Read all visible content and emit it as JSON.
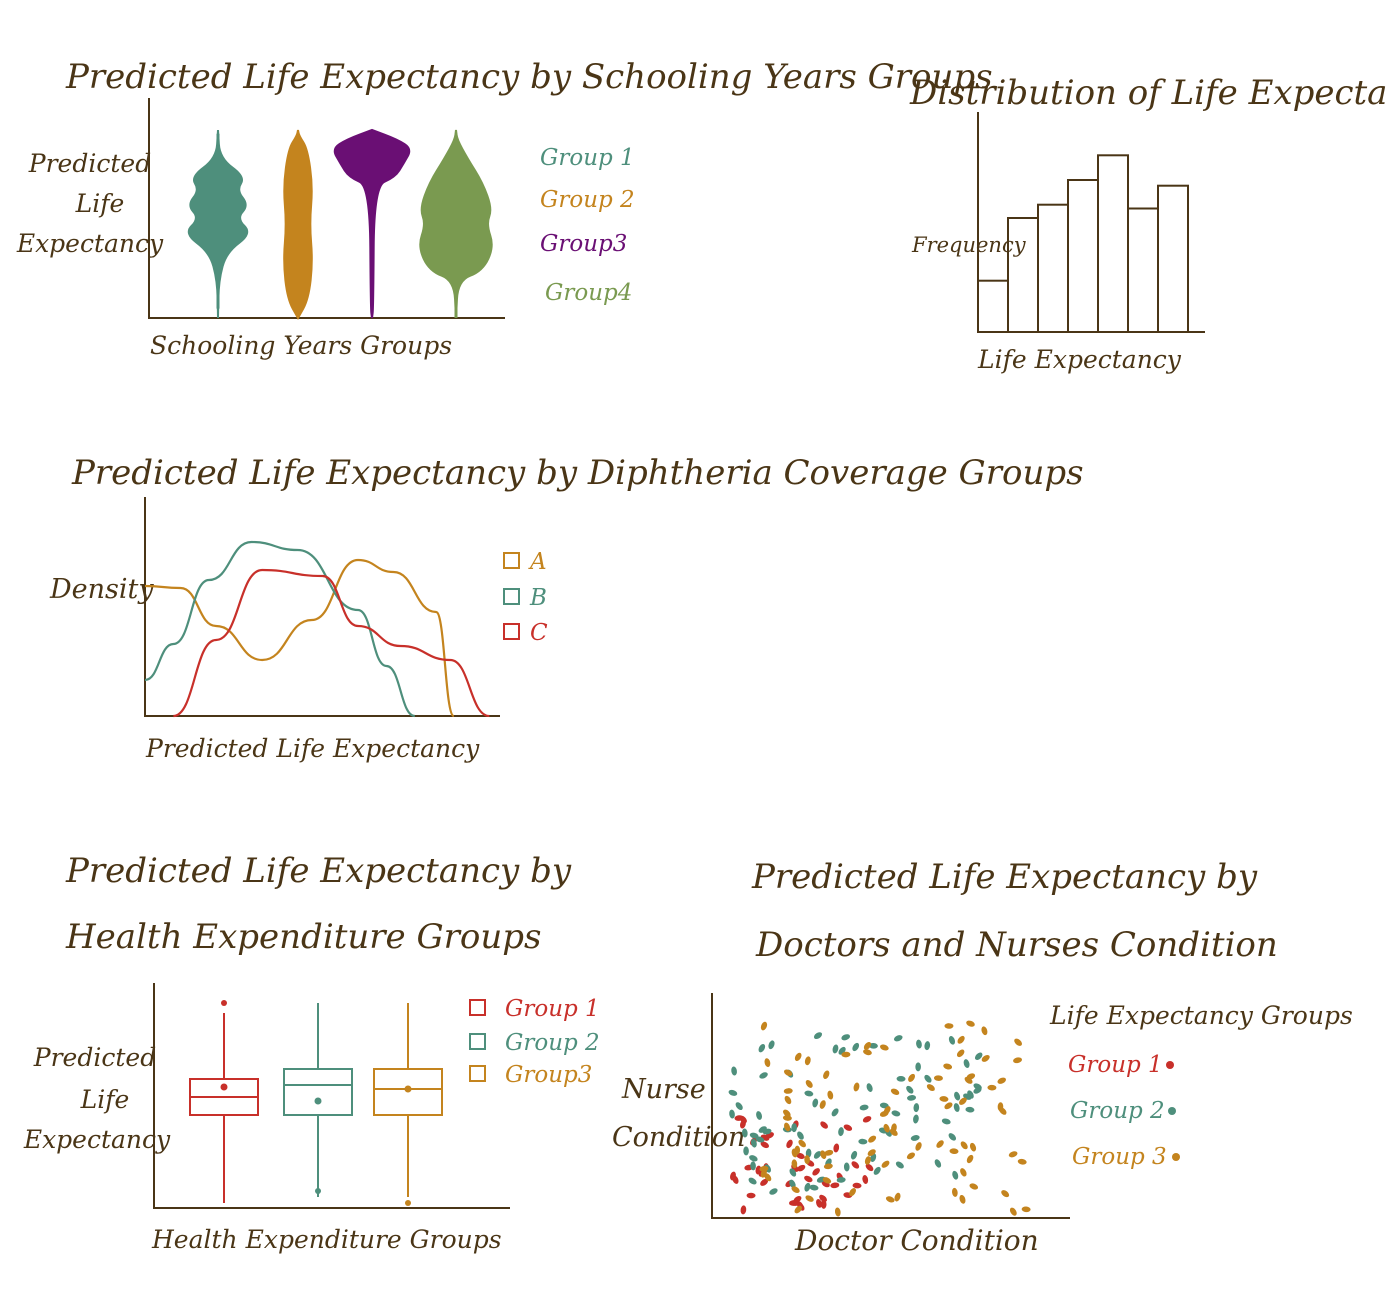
{
  "colors": {
    "ink": "#4a3516",
    "teal": "#4e8f7c",
    "orange": "#c4841e",
    "purple": "#6a0f74",
    "olive": "#7a9a50",
    "red": "#c8302a"
  },
  "chart_data": [
    {
      "type": "violin",
      "title": "Predicted Life Expectancy by Schooling Years Groups",
      "xlabel": "Schooling Years Groups",
      "ylabel": [
        "Predicted",
        "Life",
        "Expectancy"
      ],
      "series": [
        {
          "name": "Group 1",
          "color": "#4e8f7c",
          "low": 0.05,
          "high": 0.98,
          "body_low": 0.35,
          "body_high": 0.75
        },
        {
          "name": "Group 2",
          "color": "#c4841e",
          "low": 0.1,
          "high": 0.95,
          "body_low": 0.14,
          "body_high": 0.92
        },
        {
          "name": "Group3",
          "color": "#6a0f74",
          "low": 0.02,
          "high": 1.0,
          "body_low": 0.72,
          "body_high": 0.96
        },
        {
          "name": "Group4",
          "color": "#7a9a50",
          "low": 0.0,
          "high": 0.98,
          "body_low": 0.23,
          "body_high": 0.78
        }
      ]
    },
    {
      "type": "bar",
      "title": "Distribution of Life Expectancy",
      "xlabel": "Life Expectancy",
      "ylabel": "Frequency",
      "values": [
        0.27,
        0.6,
        0.67,
        0.8,
        0.93,
        0.65,
        0.77
      ],
      "ylim": [
        0,
        1
      ]
    },
    {
      "type": "line",
      "title": "Predicted Life Expectancy by Diphtheria Coverage Groups",
      "xlabel": "Predicted Life Expectancy",
      "ylabel": "Density",
      "series": [
        {
          "name": "A",
          "color": "#c4841e",
          "points": [
            [
              0.0,
              0.65
            ],
            [
              0.1,
              0.64
            ],
            [
              0.2,
              0.45
            ],
            [
              0.33,
              0.28
            ],
            [
              0.47,
              0.48
            ],
            [
              0.6,
              0.78
            ],
            [
              0.7,
              0.72
            ],
            [
              0.82,
              0.52
            ],
            [
              0.87,
              0.0
            ]
          ]
        },
        {
          "name": "B",
          "color": "#4e8f7c",
          "points": [
            [
              0.0,
              0.18
            ],
            [
              0.08,
              0.36
            ],
            [
              0.18,
              0.68
            ],
            [
              0.3,
              0.87
            ],
            [
              0.43,
              0.83
            ],
            [
              0.6,
              0.53
            ],
            [
              0.68,
              0.25
            ],
            [
              0.76,
              0.0
            ]
          ]
        },
        {
          "name": "C",
          "color": "#c8302a",
          "points": [
            [
              0.08,
              0.0
            ],
            [
              0.2,
              0.38
            ],
            [
              0.33,
              0.73
            ],
            [
              0.5,
              0.7
            ],
            [
              0.6,
              0.45
            ],
            [
              0.72,
              0.35
            ],
            [
              0.86,
              0.28
            ],
            [
              0.97,
              0.0
            ]
          ]
        }
      ]
    },
    {
      "type": "box",
      "title": [
        "Predicted Life Expectancy by",
        "Health Expenditure Groups"
      ],
      "xlabel": "Health Expenditure Groups",
      "ylabel": [
        "Predicted",
        "Life",
        "Expectancy"
      ],
      "series": [
        {
          "name": "Group 1",
          "color": "#c8302a",
          "min": 0.0,
          "q1": 0.44,
          "median": 0.53,
          "q3": 0.62,
          "max": 0.95,
          "mean": 0.58,
          "outlier": 1.0
        },
        {
          "name": "Group 2",
          "color": "#4e8f7c",
          "min": 0.03,
          "q1": 0.44,
          "median": 0.59,
          "q3": 0.67,
          "max": 1.0,
          "mean": 0.51,
          "outlier": 0.06
        },
        {
          "name": "Group3",
          "color": "#c4841e",
          "min": 0.03,
          "q1": 0.44,
          "median": 0.57,
          "q3": 0.67,
          "max": 1.0,
          "mean": 0.57,
          "outlier": 0.0
        }
      ]
    },
    {
      "type": "scatter",
      "title": [
        "Predicted Life Expectancy by",
        "Doctors and Nurses Condition"
      ],
      "xlabel": "Doctor Condition",
      "ylabel": [
        "Nurse",
        "Condition"
      ],
      "legend_title": "Life Expectancy Groups",
      "series": [
        {
          "name": "Group 1",
          "color": "#c8302a",
          "count": 45,
          "x_range": [
            0.0,
            0.45
          ],
          "y_range": [
            0.0,
            0.5
          ]
        },
        {
          "name": "Group 2",
          "color": "#4e8f7c",
          "count": 80,
          "x_range": [
            0.0,
            0.8
          ],
          "y_range": [
            0.1,
            0.9
          ]
        },
        {
          "name": "Group 3",
          "color": "#c4841e",
          "count": 85,
          "x_range": [
            0.1,
            0.95
          ],
          "y_range": [
            0.0,
            0.95
          ]
        }
      ]
    }
  ]
}
